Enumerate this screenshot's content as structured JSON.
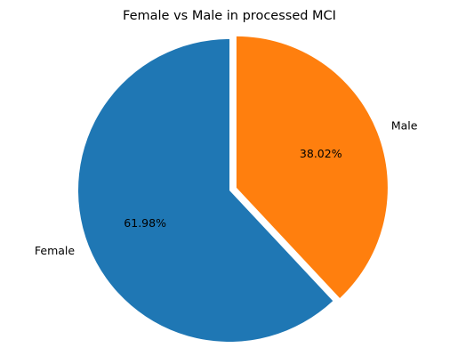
{
  "chart_data": {
    "type": "pie",
    "title": "Female vs Male in processed MCI",
    "labels": [
      "Female",
      "Male"
    ],
    "values": [
      61.98,
      38.02
    ],
    "percent_labels": [
      "61.98%",
      "38.02%"
    ],
    "colors": [
      "#1f77b4",
      "#ff7f0e"
    ],
    "explode": [
      0,
      0.05
    ],
    "start_angle_deg": 90,
    "counterclockwise": true
  }
}
